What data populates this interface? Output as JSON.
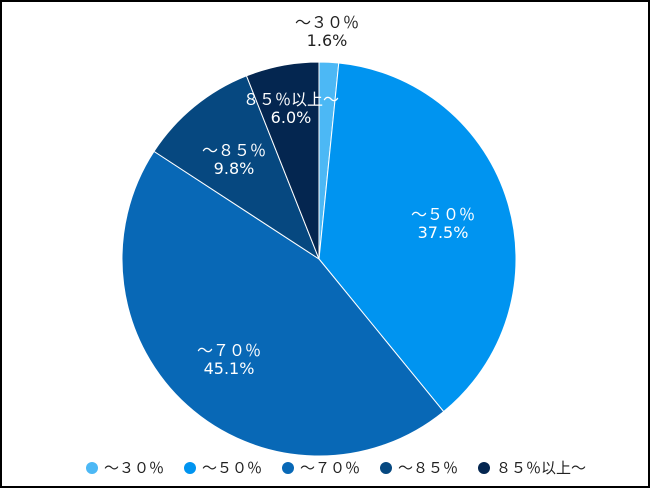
{
  "chart_data": {
    "type": "pie",
    "title": "",
    "categories": [
      "～３０％",
      "～５０％",
      "～７０％",
      "～８５％",
      "８５％以上～"
    ],
    "values": [
      1.6,
      37.5,
      45.1,
      9.8,
      6.0
    ],
    "value_labels": [
      "1.6%",
      "37.5%",
      "45.1%",
      "9.8%",
      "6.0%"
    ],
    "colors": [
      "#4cb8f5",
      "#0094f0",
      "#0868b6",
      "#064880",
      "#042650"
    ],
    "label_colors": [
      "#222222",
      "#ffffff",
      "#ffffff",
      "#ffffff",
      "#ffffff"
    ],
    "start_angle": "12 o'clock",
    "direction": "clockwise",
    "legend_position": "bottom"
  }
}
